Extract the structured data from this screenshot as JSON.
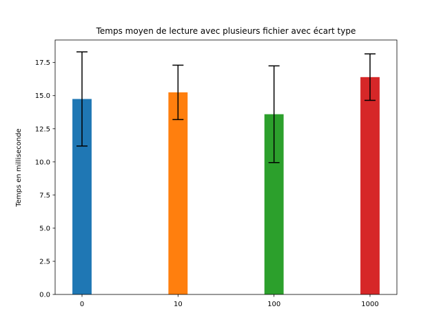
{
  "chart_data": {
    "type": "bar",
    "title": "Temps moyen de lecture avec plusieurs fichier avec écart type",
    "xlabel": "",
    "ylabel": "Temps en milliseconde",
    "categories": [
      "0",
      "10",
      "100",
      "1000"
    ],
    "values": [
      14.75,
      15.25,
      13.6,
      16.4
    ],
    "error": [
      3.55,
      2.05,
      3.65,
      1.75
    ],
    "colors": [
      "#1f77b4",
      "#ff7f0e",
      "#2ca02c",
      "#d62728"
    ],
    "ylim": [
      0,
      19.2
    ],
    "yticks": [
      "0.0",
      "2.5",
      "5.0",
      "7.5",
      "10.0",
      "12.5",
      "15.0",
      "17.5"
    ],
    "grid": false,
    "legend": "none"
  }
}
